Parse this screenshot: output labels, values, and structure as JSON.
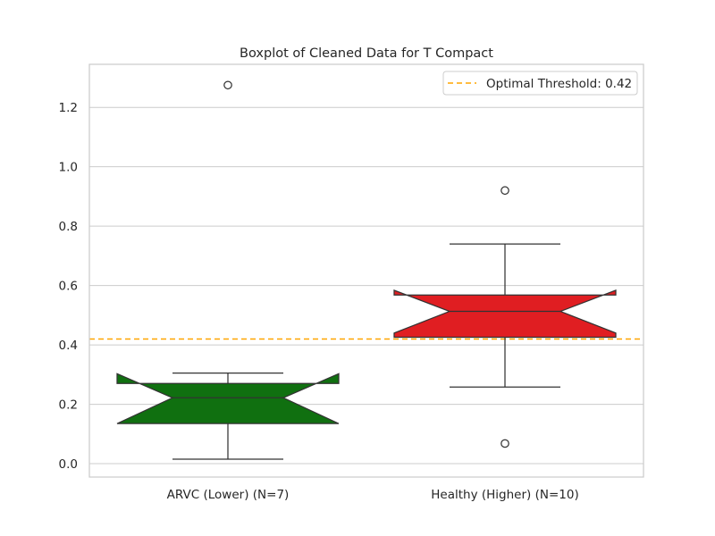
{
  "chart_data": {
    "type": "box",
    "title": "Boxplot of Cleaned Data for T Compact",
    "xlabel": "",
    "ylabel": "",
    "ylim": [
      -0.045,
      1.345
    ],
    "yticks": [
      0.0,
      0.2,
      0.4,
      0.6,
      0.8,
      1.0,
      1.2
    ],
    "ytick_labels": [
      "0.0",
      "0.2",
      "0.4",
      "0.6",
      "0.8",
      "1.0",
      "1.2"
    ],
    "grid": true,
    "notched": true,
    "categories": [
      "ARVC (Lower) (N=7)",
      "Healthy (Higher) (N=10)"
    ],
    "boxes": [
      {
        "category": "ARVC (Lower) (N=7)",
        "color": "#107010",
        "whisker_low": 0.015,
        "q1": 0.135,
        "median": 0.222,
        "q3": 0.27,
        "whisker_high": 0.305,
        "notch_low": 0.135,
        "notch_high": 0.303,
        "outliers": [
          1.275
        ]
      },
      {
        "category": "Healthy (Higher) (N=10)",
        "color": "#e01e22",
        "whisker_low": 0.258,
        "q1": 0.426,
        "median": 0.513,
        "q3": 0.568,
        "whisker_high": 0.74,
        "notch_low": 0.44,
        "notch_high": 0.584,
        "outliers": [
          0.92,
          0.068
        ]
      }
    ],
    "reference_line": {
      "value": 0.42,
      "label": "Optimal Threshold: 0.42",
      "color": "#ffa500",
      "style": "dashed"
    },
    "legend": {
      "position": "top-right",
      "entries": [
        "Optimal Threshold: 0.42"
      ]
    }
  }
}
